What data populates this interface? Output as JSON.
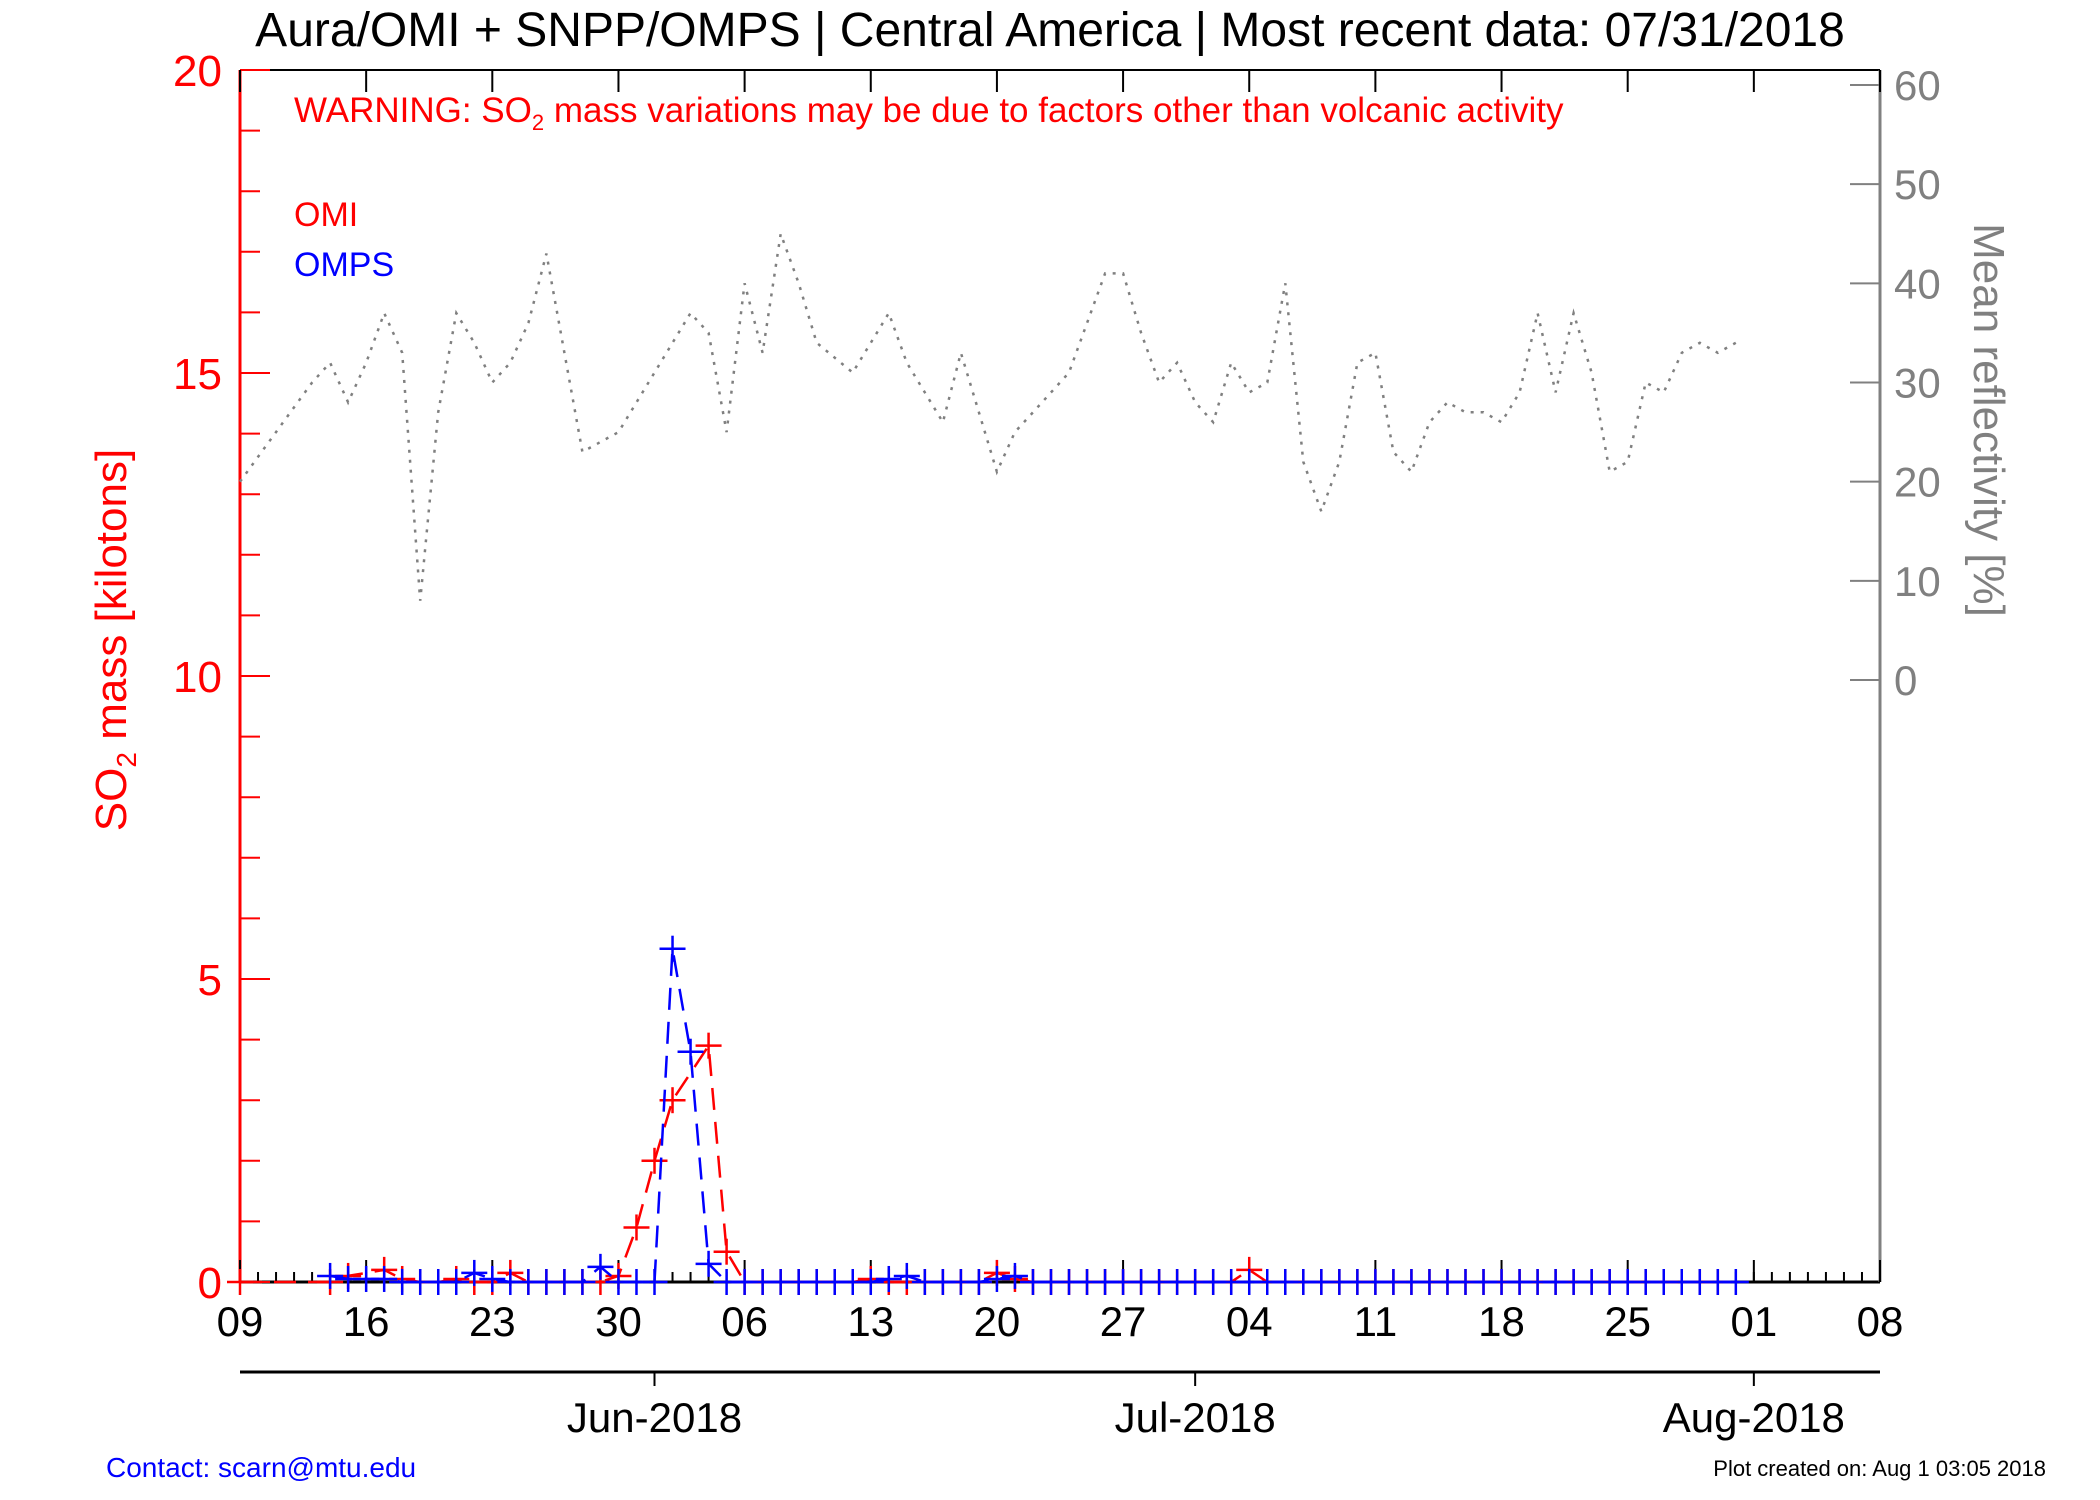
{
  "chart_data": {
    "type": "line",
    "title": "Aura/OMI + SNPP/OMPS | Central America | Most recent data: 07/31/2018",
    "warning": {
      "prefix": "WARNING: SO",
      "subscript": "2",
      "suffix": " mass variations may be due to factors other than volcanic activity"
    },
    "ylabel": {
      "prefix": "SO",
      "subscript": "2",
      "suffix": " mass [kilotons]"
    },
    "y2label": "Mean reflectivity [%]",
    "xlim": [
      "2018-05-09",
      "2018-08-08"
    ],
    "ylim": [
      0,
      20
    ],
    "y2lim": [
      0,
      60
    ],
    "yticks": [
      0,
      5,
      10,
      15,
      20
    ],
    "y2ticks": [
      0,
      10,
      20,
      30,
      40,
      50,
      60
    ],
    "xticks": [
      {
        "date": "2018-05-09",
        "label": "09"
      },
      {
        "date": "2018-05-16",
        "label": "16"
      },
      {
        "date": "2018-05-23",
        "label": "23"
      },
      {
        "date": "2018-05-30",
        "label": "30"
      },
      {
        "date": "2018-06-06",
        "label": "06"
      },
      {
        "date": "2018-06-13",
        "label": "13"
      },
      {
        "date": "2018-06-20",
        "label": "20"
      },
      {
        "date": "2018-06-27",
        "label": "27"
      },
      {
        "date": "2018-07-04",
        "label": "04"
      },
      {
        "date": "2018-07-11",
        "label": "11"
      },
      {
        "date": "2018-07-18",
        "label": "18"
      },
      {
        "date": "2018-07-25",
        "label": "25"
      },
      {
        "date": "2018-08-01",
        "label": "01"
      },
      {
        "date": "2018-08-08",
        "label": "08"
      }
    ],
    "months": [
      {
        "date": "2018-06-01",
        "label": "Jun-2018"
      },
      {
        "date": "2018-07-01",
        "label": "Jul-2018"
      },
      {
        "date": "2018-08-01",
        "label": "Aug-2018"
      }
    ],
    "legend": [
      {
        "name": "OMI",
        "color": "#ff0000"
      },
      {
        "name": "OMPS",
        "color": "#0000ff"
      }
    ],
    "series": [
      {
        "name": "OMI",
        "color": "#ff0000",
        "style": "dashed",
        "marker": "plus",
        "x": [
          "2018-05-09",
          "2018-05-14",
          "2018-05-15",
          "2018-05-17",
          "2018-05-18",
          "2018-05-19",
          "2018-05-20",
          "2018-05-21",
          "2018-05-22",
          "2018-05-23",
          "2018-05-24",
          "2018-05-25",
          "2018-05-26",
          "2018-05-27",
          "2018-05-28",
          "2018-05-29",
          "2018-05-30",
          "2018-05-31",
          "2018-06-01",
          "2018-06-02",
          "2018-06-04",
          "2018-06-05",
          "2018-06-06",
          "2018-06-07",
          "2018-06-08",
          "2018-06-09",
          "2018-06-10",
          "2018-06-11",
          "2018-06-12",
          "2018-06-13",
          "2018-06-14",
          "2018-06-15",
          "2018-06-16",
          "2018-06-17",
          "2018-06-18",
          "2018-06-19",
          "2018-06-20",
          "2018-06-21",
          "2018-06-22",
          "2018-06-23",
          "2018-06-24",
          "2018-06-25",
          "2018-06-26",
          "2018-06-27",
          "2018-06-28",
          "2018-06-29",
          "2018-06-30",
          "2018-07-01",
          "2018-07-02",
          "2018-07-03",
          "2018-07-04",
          "2018-07-05",
          "2018-07-06",
          "2018-07-07",
          "2018-07-08",
          "2018-07-09",
          "2018-07-10",
          "2018-07-11",
          "2018-07-12",
          "2018-07-13",
          "2018-07-14",
          "2018-07-15",
          "2018-07-16",
          "2018-07-17",
          "2018-07-18",
          "2018-07-19",
          "2018-07-20",
          "2018-07-21",
          "2018-07-22",
          "2018-07-23",
          "2018-07-24",
          "2018-07-25",
          "2018-07-26",
          "2018-07-27",
          "2018-07-28",
          "2018-07-29",
          "2018-07-30"
        ],
        "y": [
          0.0,
          0.0,
          0.1,
          0.2,
          0.05,
          0.0,
          0.0,
          0.05,
          0.0,
          0.0,
          0.15,
          0.0,
          0.0,
          0.0,
          0.0,
          0.0,
          0.1,
          0.9,
          2.0,
          3.0,
          3.9,
          0.5,
          0.0,
          0.0,
          0.0,
          0.0,
          0.0,
          0.0,
          0.0,
          0.05,
          0.0,
          0.0,
          0.0,
          0.0,
          0.0,
          0.0,
          0.15,
          0.05,
          0.0,
          0.0,
          0.0,
          0.0,
          0.0,
          0.0,
          0.0,
          0.0,
          0.0,
          0.0,
          0.0,
          0.0,
          0.2,
          0.0,
          0.0,
          0.0,
          0.0,
          0.0,
          0.0,
          0.0,
          0.0,
          0.0,
          0.0,
          0.0,
          0.0,
          0.0,
          0.0,
          0.0,
          0.0,
          0.0,
          0.0,
          0.0,
          0.0,
          0.0,
          0.0,
          0.0,
          0.0,
          0.0,
          0.0
        ]
      },
      {
        "name": "OMPS",
        "color": "#0000ff",
        "style": "dashed",
        "marker": "plus",
        "x": [
          "2018-05-14",
          "2018-05-15",
          "2018-05-16",
          "2018-05-17",
          "2018-05-18",
          "2018-05-19",
          "2018-05-20",
          "2018-05-21",
          "2018-05-22",
          "2018-05-23",
          "2018-05-24",
          "2018-05-25",
          "2018-05-26",
          "2018-05-27",
          "2018-05-28",
          "2018-05-29",
          "2018-05-30",
          "2018-05-31",
          "2018-06-01",
          "2018-06-02",
          "2018-06-03",
          "2018-06-04",
          "2018-06-05",
          "2018-06-06",
          "2018-06-07",
          "2018-06-08",
          "2018-06-09",
          "2018-06-10",
          "2018-06-11",
          "2018-06-12",
          "2018-06-13",
          "2018-06-14",
          "2018-06-15",
          "2018-06-16",
          "2018-06-17",
          "2018-06-18",
          "2018-06-19",
          "2018-06-20",
          "2018-06-21",
          "2018-06-22",
          "2018-06-23",
          "2018-06-24",
          "2018-06-25",
          "2018-06-26",
          "2018-06-27",
          "2018-06-28",
          "2018-06-29",
          "2018-06-30",
          "2018-07-01",
          "2018-07-02",
          "2018-07-03",
          "2018-07-04",
          "2018-07-05",
          "2018-07-06",
          "2018-07-07",
          "2018-07-08",
          "2018-07-09",
          "2018-07-10",
          "2018-07-11",
          "2018-07-12",
          "2018-07-13",
          "2018-07-14",
          "2018-07-15",
          "2018-07-16",
          "2018-07-17",
          "2018-07-18",
          "2018-07-19",
          "2018-07-20",
          "2018-07-21",
          "2018-07-22",
          "2018-07-23",
          "2018-07-24",
          "2018-07-25",
          "2018-07-26",
          "2018-07-27",
          "2018-07-28",
          "2018-07-29",
          "2018-07-30",
          "2018-07-31"
        ],
        "y": [
          0.1,
          0.05,
          0.05,
          0.05,
          0.0,
          0.0,
          0.0,
          0.0,
          0.15,
          0.05,
          0.0,
          0.0,
          0.0,
          0.0,
          0.0,
          0.25,
          0.0,
          0.0,
          0.0,
          5.5,
          3.8,
          0.3,
          0.0,
          0.0,
          0.0,
          0.0,
          0.0,
          0.0,
          0.0,
          0.0,
          0.0,
          0.05,
          0.1,
          0.0,
          0.0,
          0.0,
          0.0,
          0.05,
          0.1,
          0.0,
          0.0,
          0.0,
          0.0,
          0.0,
          0.0,
          0.0,
          0.0,
          0.0,
          0.0,
          0.0,
          0.0,
          0.0,
          0.0,
          0.0,
          0.0,
          0.0,
          0.0,
          0.0,
          0.0,
          0.0,
          0.0,
          0.0,
          0.0,
          0.0,
          0.0,
          0.0,
          0.0,
          0.0,
          0.0,
          0.0,
          0.0,
          0.0,
          0.0,
          0.0,
          0.0,
          0.0,
          0.0,
          0.0,
          0.0
        ]
      },
      {
        "name": "Mean reflectivity",
        "axis": "right",
        "color": "#808080",
        "style": "dotted",
        "x": [
          "2018-05-09",
          "2018-05-11",
          "2018-05-13",
          "2018-05-14",
          "2018-05-15",
          "2018-05-16",
          "2018-05-17",
          "2018-05-18",
          "2018-05-19",
          "2018-05-20",
          "2018-05-21",
          "2018-05-22",
          "2018-05-23",
          "2018-05-24",
          "2018-05-25",
          "2018-05-26",
          "2018-05-28",
          "2018-05-30",
          "2018-06-01",
          "2018-06-03",
          "2018-06-04",
          "2018-06-05",
          "2018-06-06",
          "2018-06-07",
          "2018-06-08",
          "2018-06-09",
          "2018-06-10",
          "2018-06-12",
          "2018-06-13",
          "2018-06-14",
          "2018-06-15",
          "2018-06-16",
          "2018-06-17",
          "2018-06-18",
          "2018-06-19",
          "2018-06-20",
          "2018-06-21",
          "2018-06-22",
          "2018-06-24",
          "2018-06-26",
          "2018-06-27",
          "2018-06-28",
          "2018-06-29",
          "2018-06-30",
          "2018-07-01",
          "2018-07-02",
          "2018-07-03",
          "2018-07-04",
          "2018-07-05",
          "2018-07-06",
          "2018-07-07",
          "2018-07-08",
          "2018-07-09",
          "2018-07-10",
          "2018-07-11",
          "2018-07-12",
          "2018-07-13",
          "2018-07-14",
          "2018-07-15",
          "2018-07-16",
          "2018-07-17",
          "2018-07-18",
          "2018-07-19",
          "2018-07-20",
          "2018-07-21",
          "2018-07-22",
          "2018-07-23",
          "2018-07-24",
          "2018-07-25",
          "2018-07-26",
          "2018-07-27",
          "2018-07-28",
          "2018-07-29",
          "2018-07-30",
          "2018-07-31"
        ],
        "y": [
          20,
          25,
          30,
          32,
          28,
          32,
          37,
          33,
          8,
          27,
          37,
          34,
          30,
          32,
          36,
          43,
          23,
          25,
          31,
          37,
          35,
          25,
          40,
          33,
          45,
          40,
          34,
          31,
          34,
          37,
          32,
          29,
          26,
          33,
          27,
          21,
          25,
          27,
          31,
          41,
          41,
          35,
          30,
          32,
          28,
          26,
          32,
          29,
          30,
          40,
          22,
          17,
          22,
          32,
          33,
          23,
          21,
          26,
          28,
          27,
          27,
          26,
          29,
          37,
          29,
          37,
          31,
          21,
          22,
          30,
          29,
          33,
          34,
          33,
          34
        ]
      }
    ]
  },
  "footer": {
    "contact": "Contact: scarn@mtu.edu",
    "created": "Plot created on: Aug  1 03:05 2018"
  }
}
